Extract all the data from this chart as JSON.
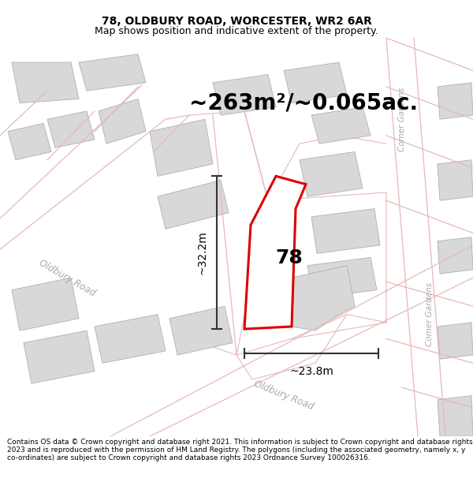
{
  "title_line1": "78, OLDBURY ROAD, WORCESTER, WR2 6AR",
  "title_line2": "Map shows position and indicative extent of the property.",
  "area_label": "~263m²/~0.065ac.",
  "property_number": "78",
  "dim_height": "~32.2m",
  "dim_width": "~23.8m",
  "road_label_left": "Oldbury Road",
  "road_label_bottom": "Oldbury Road",
  "road_label_right1": "Comer Gardens",
  "road_label_right2": "Comer Gardens",
  "footer_text": "Contains OS data © Crown copyright and database right 2021. This information is subject to Crown copyright and database rights 2023 and is reproduced with the permission of HM Land Registry. The polygons (including the associated geometry, namely x, y co-ordinates) are subject to Crown copyright and database rights 2023 Ordnance Survey 100026316.",
  "bg_color": "#ffffff",
  "map_bg": "#ffffff",
  "property_poly_color": "#dd0000",
  "building_color": "#d8d8d8",
  "building_edge_color": "#b0b0b0",
  "road_outline_color": "#e8b8b8",
  "road_fill_color": "#ffffff",
  "dim_color": "#333333",
  "title_fontsize": 10,
  "subtitle_fontsize": 9,
  "area_fontsize": 20,
  "property_fontsize": 18,
  "dim_fontsize": 10,
  "footer_fontsize": 6.5,
  "road_label_color": "#aaaaaa",
  "road_label_fontsize": 8.5
}
